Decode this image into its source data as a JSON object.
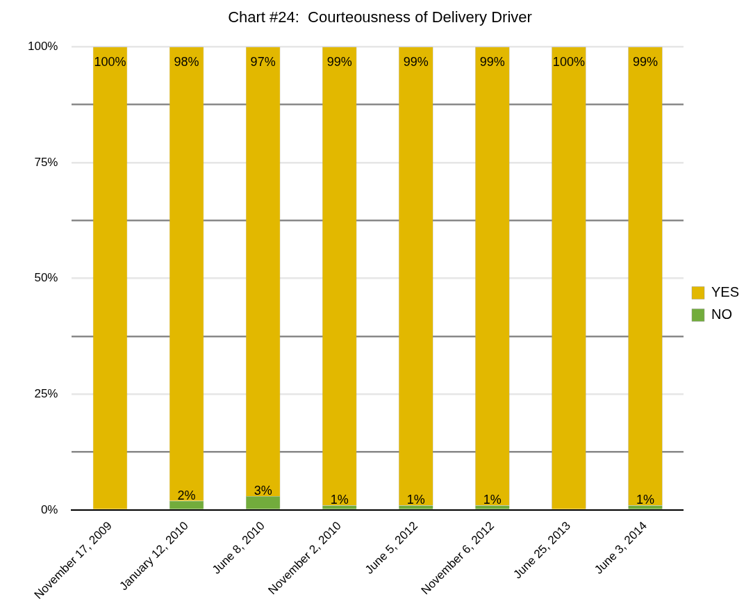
{
  "chart_data": {
    "type": "bar",
    "title": "Chart #24:  Courteousness of Delivery Driver",
    "stacked": true,
    "categories": [
      "November 17, 2009",
      "January 12, 2010",
      "June 8, 2010",
      "November 2, 2010",
      "June 5, 2012",
      "November 6, 2012",
      "June 25, 2013",
      "June 3, 2014"
    ],
    "series": [
      {
        "name": "NO",
        "color": "#72ac3c",
        "values": [
          0,
          2,
          3,
          1,
          1,
          1,
          0,
          1
        ],
        "value_labels": [
          null,
          "2%",
          "3%",
          "1%",
          "1%",
          "1%",
          null,
          "1%"
        ]
      },
      {
        "name": "YES",
        "color": "#e2b800",
        "values": [
          100,
          98,
          97,
          99,
          99,
          99,
          100,
          99
        ],
        "value_labels": [
          "100%",
          "98%",
          "97%",
          "99%",
          "99%",
          "99%",
          "100%",
          "99%"
        ]
      }
    ],
    "ylim": [
      0,
      100
    ],
    "yticks": [
      {
        "value": 0,
        "label": "0%"
      },
      {
        "value": 12.5,
        "label": null
      },
      {
        "value": 25,
        "label": "25%"
      },
      {
        "value": 37.5,
        "label": null
      },
      {
        "value": 50,
        "label": "50%"
      },
      {
        "value": 62.5,
        "label": null
      },
      {
        "value": 75,
        "label": "75%"
      },
      {
        "value": 87.5,
        "label": null
      },
      {
        "value": 100,
        "label": "100%"
      }
    ],
    "grid": "y",
    "legend": "right"
  }
}
